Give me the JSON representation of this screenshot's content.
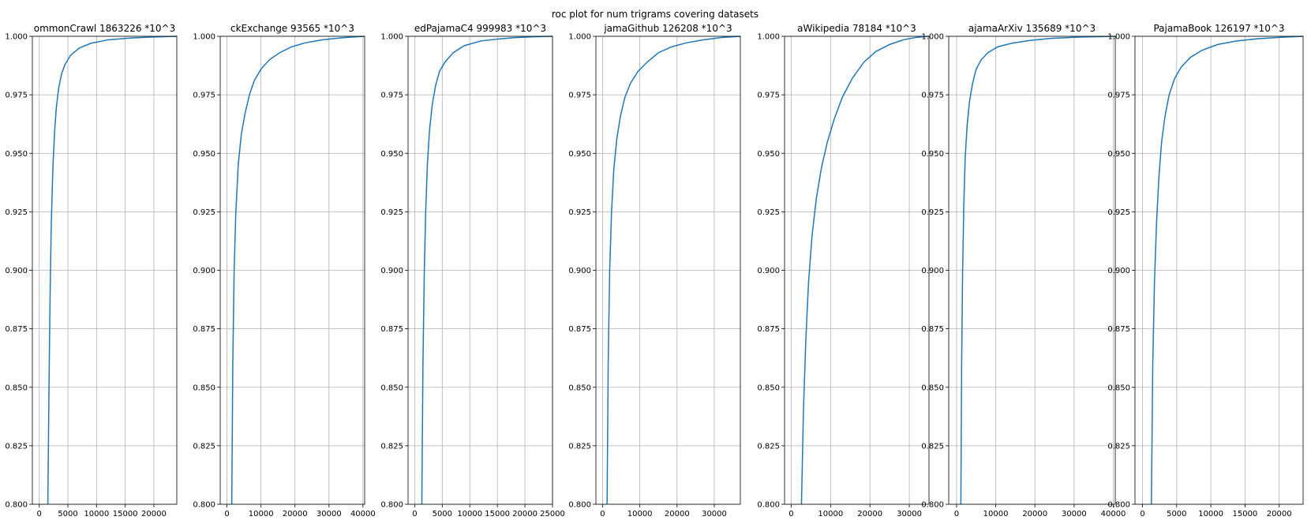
{
  "figure": {
    "suptitle": "roc plot for num trigrams covering datasets"
  },
  "chart_data": [
    {
      "type": "line",
      "title": "ommonCrawl 1863226 *10^3",
      "xlim": [
        -1200,
        24000
      ],
      "ylim": [
        0.8,
        1.0
      ],
      "xticks": [
        0,
        5000,
        10000,
        15000,
        20000
      ],
      "yticks": [
        0.8,
        0.825,
        0.85,
        0.875,
        0.9,
        0.925,
        0.95,
        0.975,
        1.0
      ],
      "grid": true,
      "color": "#1f77b4",
      "series": [
        {
          "x": [
            1500,
            1700,
            1900,
            2100,
            2400,
            2700,
            3000,
            3400,
            3900,
            4500,
            5500,
            7000,
            9000,
            12000,
            16000,
            20000,
            24000
          ],
          "y": [
            0.8,
            0.85,
            0.89,
            0.92,
            0.945,
            0.96,
            0.97,
            0.978,
            0.984,
            0.988,
            0.992,
            0.995,
            0.997,
            0.9985,
            0.9993,
            0.9997,
            1.0
          ]
        }
      ]
    },
    {
      "type": "line",
      "title": "ckExchange 93565 *10^3",
      "xlim": [
        -2000,
        40500
      ],
      "ylim": [
        0.8,
        1.0
      ],
      "xticks": [
        0,
        10000,
        20000,
        30000,
        40000
      ],
      "yticks": [
        0.8,
        0.825,
        0.85,
        0.875,
        0.9,
        0.925,
        0.95,
        0.975,
        1.0
      ],
      "grid": true,
      "color": "#1f77b4",
      "series": [
        {
          "x": [
            1400,
            1700,
            2100,
            2600,
            3300,
            4200,
            5300,
            6600,
            8000,
            10000,
            12500,
            15500,
            19000,
            23000,
            28000,
            34000,
            40500
          ],
          "y": [
            0.8,
            0.86,
            0.9,
            0.925,
            0.945,
            0.958,
            0.967,
            0.975,
            0.981,
            0.986,
            0.99,
            0.993,
            0.9955,
            0.9972,
            0.9985,
            0.9994,
            1.0
          ]
        }
      ]
    },
    {
      "type": "line",
      "title": "edPajamaC4 999983 *10^3",
      "xlim": [
        -1200,
        25000
      ],
      "ylim": [
        0.8,
        1.0
      ],
      "xticks": [
        0,
        5000,
        10000,
        15000,
        20000,
        25000
      ],
      "yticks": [
        0.8,
        0.825,
        0.85,
        0.875,
        0.9,
        0.925,
        0.95,
        0.975,
        1.0
      ],
      "grid": true,
      "color": "#1f77b4",
      "series": [
        {
          "x": [
            1300,
            1500,
            1750,
            2000,
            2300,
            2700,
            3200,
            3800,
            4500,
            5500,
            7000,
            9000,
            12000,
            15000,
            18000,
            21500,
            25000
          ],
          "y": [
            0.8,
            0.86,
            0.9,
            0.925,
            0.945,
            0.96,
            0.971,
            0.979,
            0.985,
            0.989,
            0.993,
            0.996,
            0.998,
            0.9988,
            0.9994,
            0.9998,
            1.0
          ]
        }
      ]
    },
    {
      "type": "line",
      "title": "jamaGithub 126208 *10^3",
      "xlim": [
        -1800,
        37000
      ],
      "ylim": [
        0.8,
        1.0
      ],
      "xticks": [
        0,
        10000,
        20000,
        30000
      ],
      "yticks": [
        0.8,
        0.825,
        0.85,
        0.875,
        0.9,
        0.925,
        0.95,
        0.975,
        1.0
      ],
      "grid": true,
      "color": "#1f77b4",
      "series": [
        {
          "x": [
            1200,
            1500,
            1900,
            2400,
            3000,
            3800,
            4800,
            6000,
            7500,
            9500,
            12000,
            15000,
            18500,
            22500,
            27000,
            32000,
            37000
          ],
          "y": [
            0.8,
            0.86,
            0.9,
            0.925,
            0.943,
            0.956,
            0.966,
            0.974,
            0.98,
            0.985,
            0.989,
            0.993,
            0.9955,
            0.9972,
            0.9985,
            0.9995,
            1.0
          ]
        }
      ]
    },
    {
      "type": "line",
      "title": "aWikipedia 78184 *10^3",
      "xlim": [
        -1700,
        35000
      ],
      "ylim": [
        0.8,
        1.0
      ],
      "xticks": [
        0,
        10000,
        20000,
        30000
      ],
      "yticks": [
        0.8,
        0.825,
        0.85,
        0.875,
        0.9,
        0.925,
        0.95,
        0.975,
        1.0
      ],
      "grid": true,
      "color": "#1f77b4",
      "series": [
        {
          "x": [
            2600,
            3100,
            3700,
            4400,
            5300,
            6400,
            7700,
            9200,
            11000,
            13000,
            15500,
            18500,
            21500,
            25000,
            28500,
            32000,
            35000
          ],
          "y": [
            0.8,
            0.84,
            0.87,
            0.895,
            0.915,
            0.931,
            0.944,
            0.955,
            0.965,
            0.974,
            0.982,
            0.989,
            0.9935,
            0.9965,
            0.9985,
            0.9996,
            1.0
          ]
        }
      ]
    },
    {
      "type": "line",
      "title": "ajamaArXiv 135689 *10^3",
      "xlim": [
        -2000,
        40500
      ],
      "ylim": [
        0.8,
        1.0
      ],
      "xticks": [
        0,
        10000,
        20000,
        30000,
        40000
      ],
      "yticks": [
        0.8,
        0.825,
        0.85,
        0.875,
        0.9,
        0.925,
        0.95,
        0.975,
        1.0
      ],
      "grid": true,
      "color": "#1f77b4",
      "series": [
        {
          "x": [
            1100,
            1300,
            1550,
            1850,
            2200,
            2700,
            3300,
            4100,
            5000,
            6300,
            8000,
            10500,
            14000,
            18500,
            24000,
            32000,
            40500
          ],
          "y": [
            0.8,
            0.86,
            0.9,
            0.928,
            0.948,
            0.962,
            0.972,
            0.98,
            0.986,
            0.99,
            0.993,
            0.9955,
            0.997,
            0.9982,
            0.9991,
            0.9997,
            1.0
          ]
        }
      ]
    },
    {
      "type": "line",
      "title": "PajamaBook 126197 *10^3",
      "xlim": [
        -1100,
        23500
      ],
      "ylim": [
        0.8,
        1.0
      ],
      "xticks": [
        0,
        5000,
        10000,
        15000,
        20000
      ],
      "yticks": [
        0.8,
        0.825,
        0.85,
        0.875,
        0.9,
        0.925,
        0.95,
        0.975,
        1.0
      ],
      "grid": true,
      "color": "#1f77b4",
      "series": [
        {
          "x": [
            1300,
            1500,
            1750,
            2050,
            2400,
            2800,
            3300,
            3900,
            4700,
            5700,
            7000,
            8700,
            11000,
            13800,
            17000,
            20300,
            23500
          ],
          "y": [
            0.8,
            0.86,
            0.895,
            0.92,
            0.94,
            0.955,
            0.966,
            0.975,
            0.982,
            0.987,
            0.991,
            0.994,
            0.9965,
            0.998,
            0.999,
            0.9996,
            1.0
          ]
        }
      ]
    }
  ]
}
